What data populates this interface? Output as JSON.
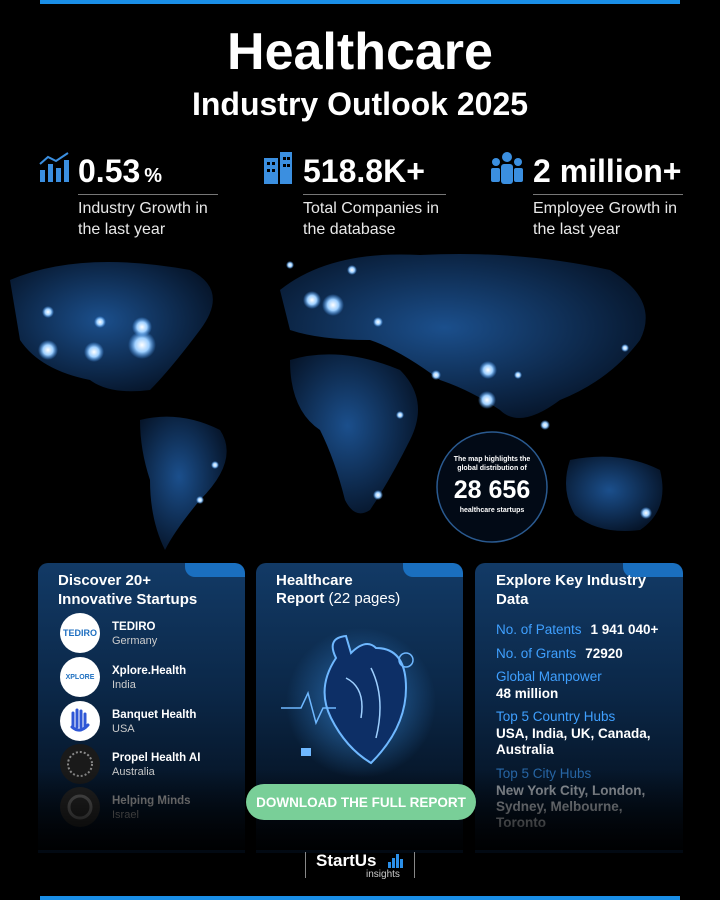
{
  "header": {
    "title": "Healthcare",
    "subtitle": "Industry Outlook 2025"
  },
  "stats": [
    {
      "value": "0.53",
      "unit": "%",
      "label": "Industry Growth in the last year"
    },
    {
      "value": "518.8K+",
      "label": "Total Companies in the database"
    },
    {
      "value": "2 million+",
      "label": "Employee Growth in the last year"
    }
  ],
  "map_callout": {
    "lead": "The map highlights the global distribution of",
    "count": "28 656",
    "tail": "healthcare startups"
  },
  "startups_card": {
    "title": "Discover 20+ Innovative Startups",
    "items": [
      {
        "logo": "TEDIRO",
        "name": "TEDIRO",
        "country": "Germany"
      },
      {
        "logo": "XPLORE",
        "name": "Xplore.Health",
        "country": "India"
      },
      {
        "name": "Banquet Health",
        "country": "USA"
      },
      {
        "name": "Propel Health AI",
        "country": "Australia"
      },
      {
        "name": "Helping Minds",
        "country": "Israel"
      }
    ]
  },
  "report_card": {
    "title": "Healthcare",
    "title_bold": "Report",
    "pages": "(22 pages)",
    "button": "DOWNLOAD THE FULL REPORT"
  },
  "data_card": {
    "title": "Explore Key Industry Data",
    "items": [
      {
        "label": "No. of Patents",
        "value": "1 941 040+"
      },
      {
        "label": "No. of Grants",
        "value": "72920"
      },
      {
        "label": "Global Manpower",
        "value": "48 million"
      },
      {
        "label": "Top 5 Country Hubs",
        "value": "USA, India, UK, Canada, Australia"
      },
      {
        "label": "Top 5 City Hubs",
        "value": "New York City, London, Sydney, Melbourne, Toronto"
      }
    ]
  },
  "footer": {
    "brand": "StartUs",
    "sub": "insights"
  }
}
